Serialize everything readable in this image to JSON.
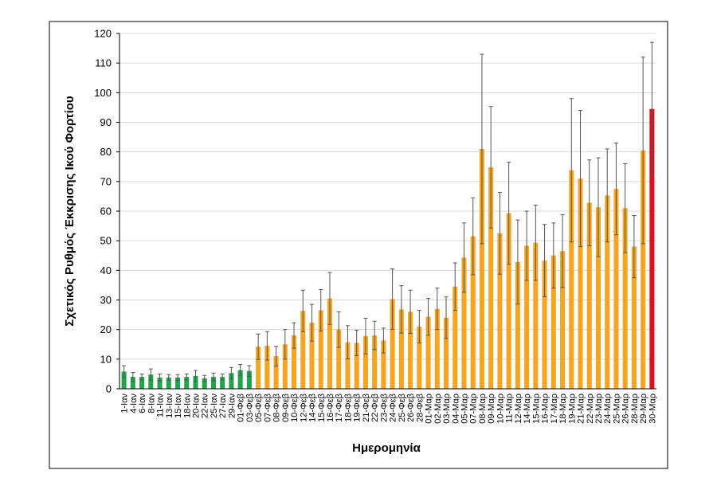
{
  "chart_data": {
    "type": "bar",
    "x_label": "Ημερομηνία",
    "y_label": "Σχετικός Ρυθμός Έκκρισης Ικού Φορτίου",
    "categories": [
      "1-Ιαν",
      "4-Ιαν",
      "6-Ιαν",
      "8-Ιαν",
      "11-Ιαν",
      "13-Ιαν",
      "15-Ιαν",
      "18-Ιαν",
      "20-Ιαν",
      "22-Ιαν",
      "25-Ιαν",
      "27-Ιαν",
      "29-Ιαν",
      "01-Φεβ",
      "03-Φεβ",
      "05-Φεβ",
      "07-Φεβ",
      "08-Φεβ",
      "09-Φεβ",
      "10-Φεβ",
      "12-Φεβ",
      "14-Φεβ",
      "15-Φεβ",
      "16-Φεβ",
      "17-Φεβ",
      "18-Φεβ",
      "19-Φεβ",
      "21-Φεβ",
      "22-Φεβ",
      "23-Φεβ",
      "24-Φεβ",
      "25-Φεβ",
      "26-Φεβ",
      "28-Φεβ",
      "01-Μαρ",
      "02-Μαρ",
      "03-Μαρ",
      "04-Μαρ",
      "05-Μαρ",
      "07-Μαρ",
      "08-Μαρ",
      "09-Μαρ",
      "10-Μαρ",
      "11-Μαρ",
      "12-Μαρ",
      "14-Μαρ",
      "15-Μαρ",
      "16-Μαρ",
      "17-Μαρ",
      "18-Μαρ",
      "19-Μαρ",
      "21-Μαρ",
      "22-Μαρ",
      "23-Μαρ",
      "24-Μαρ",
      "25-Μαρ",
      "26-Μαρ",
      "28-Μαρ",
      "29-Μαρ",
      "30-Μαρ"
    ],
    "values": [
      5.8,
      4,
      4,
      4.8,
      3.8,
      3.8,
      3.8,
      4,
      4.3,
      3.5,
      4,
      4,
      5.3,
      6.3,
      6,
      14.2,
      14.5,
      11,
      15,
      18,
      26.3,
      22.3,
      26.5,
      30.5,
      20,
      15.7,
      15.5,
      17.8,
      18,
      16.3,
      30.3,
      26.8,
      26,
      21,
      24.3,
      27,
      24,
      34.5,
      44.3,
      51.5,
      81,
      74.8,
      52.5,
      59.3,
      42.8,
      48.3,
      49.3,
      43.3,
      45,
      46.5,
      73.8,
      71,
      62.8,
      61.3,
      65.3,
      67.5,
      61,
      48,
      80.5,
      94.5
    ],
    "errors": [
      2,
      1.5,
      1,
      1.9,
      1.2,
      1,
      1,
      1,
      1.9,
      1,
      1.3,
      1,
      1.9,
      1.9,
      1.8,
      4.3,
      4.8,
      3.3,
      5,
      4.3,
      7,
      6.2,
      7,
      8.8,
      6,
      5.6,
      4.3,
      6,
      4.8,
      4.2,
      10.2,
      8,
      7.3,
      5.5,
      6.2,
      7,
      7,
      8,
      11.7,
      13,
      32,
      20.5,
      13.8,
      17.2,
      14.2,
      11.7,
      12.7,
      12.2,
      11,
      12.3,
      24.2,
      23,
      14.5,
      16.7,
      15.7,
      15.5,
      15,
      10.5,
      31.5,
      22.5
    ],
    "colors": [
      "#1fa64a",
      "#1fa64a",
      "#1fa64a",
      "#1fa64a",
      "#1fa64a",
      "#1fa64a",
      "#1fa64a",
      "#1fa64a",
      "#1fa64a",
      "#1fa64a",
      "#1fa64a",
      "#1fa64a",
      "#1fa64a",
      "#1fa64a",
      "#1fa64a",
      "#f7a521",
      "#f7a521",
      "#f7a521",
      "#f7a521",
      "#f7a521",
      "#f7a521",
      "#f7a521",
      "#f7a521",
      "#f7a521",
      "#f7a521",
      "#f7a521",
      "#f7a521",
      "#f7a521",
      "#f7a521",
      "#f7a521",
      "#f7a521",
      "#f7a521",
      "#f7a521",
      "#f7a521",
      "#f7a521",
      "#f7a521",
      "#f7a521",
      "#f7a521",
      "#f7a521",
      "#f7a521",
      "#f7a521",
      "#f7a521",
      "#f7a521",
      "#f7a521",
      "#f7a521",
      "#f7a521",
      "#f7a521",
      "#f7a521",
      "#f7a521",
      "#f7a521",
      "#f7a521",
      "#f7a521",
      "#f7a521",
      "#f7a521",
      "#f7a521",
      "#f7a521",
      "#f7a521",
      "#f7a521",
      "#f7a521",
      "#e0101b"
    ],
    "ylim": [
      0,
      120
    ],
    "yticks": [
      0,
      10,
      20,
      30,
      40,
      50,
      60,
      70,
      80,
      90,
      100,
      110,
      120
    ],
    "grid": true
  }
}
